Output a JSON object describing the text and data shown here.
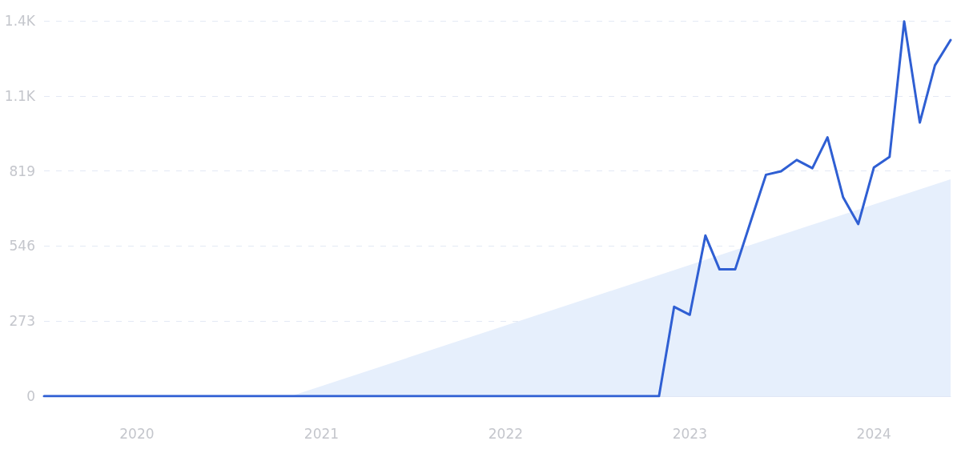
{
  "chart_data": {
    "type": "line",
    "xlim": [
      "2019-07",
      "2024-06"
    ],
    "xticks": [
      {
        "value": "2020-01",
        "label": "2020"
      },
      {
        "value": "2021-01",
        "label": "2021"
      },
      {
        "value": "2022-01",
        "label": "2022"
      },
      {
        "value": "2023-01",
        "label": "2023"
      },
      {
        "value": "2024-01",
        "label": "2024"
      }
    ],
    "ylim": [
      0,
      1365
    ],
    "yticks": [
      0,
      273,
      546,
      819,
      {
        "value": 1092,
        "label": "1.1K"
      },
      {
        "value": 1365,
        "label": "1.4K"
      }
    ],
    "grid": "y",
    "marker": "none",
    "line_style": "solid",
    "series": [
      {
        "type": "area",
        "color": "#e6effc",
        "x": [
          "2020-11",
          "2024-06"
        ],
        "values": [
          0,
          789
        ]
      },
      {
        "color": "#2f5fd3",
        "x": [
          "2019-07",
          "2019-08",
          "2019-09",
          "2019-10",
          "2019-11",
          "2019-12",
          "2020-01",
          "2020-02",
          "2020-03",
          "2020-04",
          "2020-05",
          "2020-06",
          "2020-07",
          "2020-08",
          "2020-09",
          "2020-10",
          "2020-11",
          "2020-12",
          "2021-01",
          "2021-02",
          "2021-03",
          "2021-04",
          "2021-05",
          "2021-06",
          "2021-07",
          "2021-08",
          "2021-09",
          "2021-10",
          "2021-11",
          "2021-12",
          "2022-01",
          "2022-02",
          "2022-03",
          "2022-04",
          "2022-05",
          "2022-06",
          "2022-07",
          "2022-08",
          "2022-09",
          "2022-10",
          "2022-11",
          "2022-12",
          "2023-01",
          "2023-02",
          "2023-03",
          "2023-04",
          "2023-05",
          "2023-06",
          "2023-07",
          "2023-08",
          "2023-09",
          "2023-10",
          "2023-11",
          "2023-12",
          "2024-01",
          "2024-02",
          "2024-03",
          "2024-04",
          "2024-05",
          "2024-06"
        ],
        "values": [
          0,
          0,
          0,
          0,
          0,
          0,
          0,
          0,
          0,
          0,
          0,
          0,
          0,
          0,
          0,
          0,
          0,
          0,
          0,
          0,
          0,
          0,
          0,
          0,
          0,
          0,
          0,
          0,
          0,
          0,
          0,
          0,
          0,
          0,
          0,
          0,
          0,
          0,
          0,
          0,
          0,
          325,
          296,
          584,
          461,
          461,
          631,
          805,
          818,
          859,
          829,
          941,
          723,
          626,
          832,
          870,
          1363,
          995,
          1203,
          1295
        ]
      }
    ]
  }
}
